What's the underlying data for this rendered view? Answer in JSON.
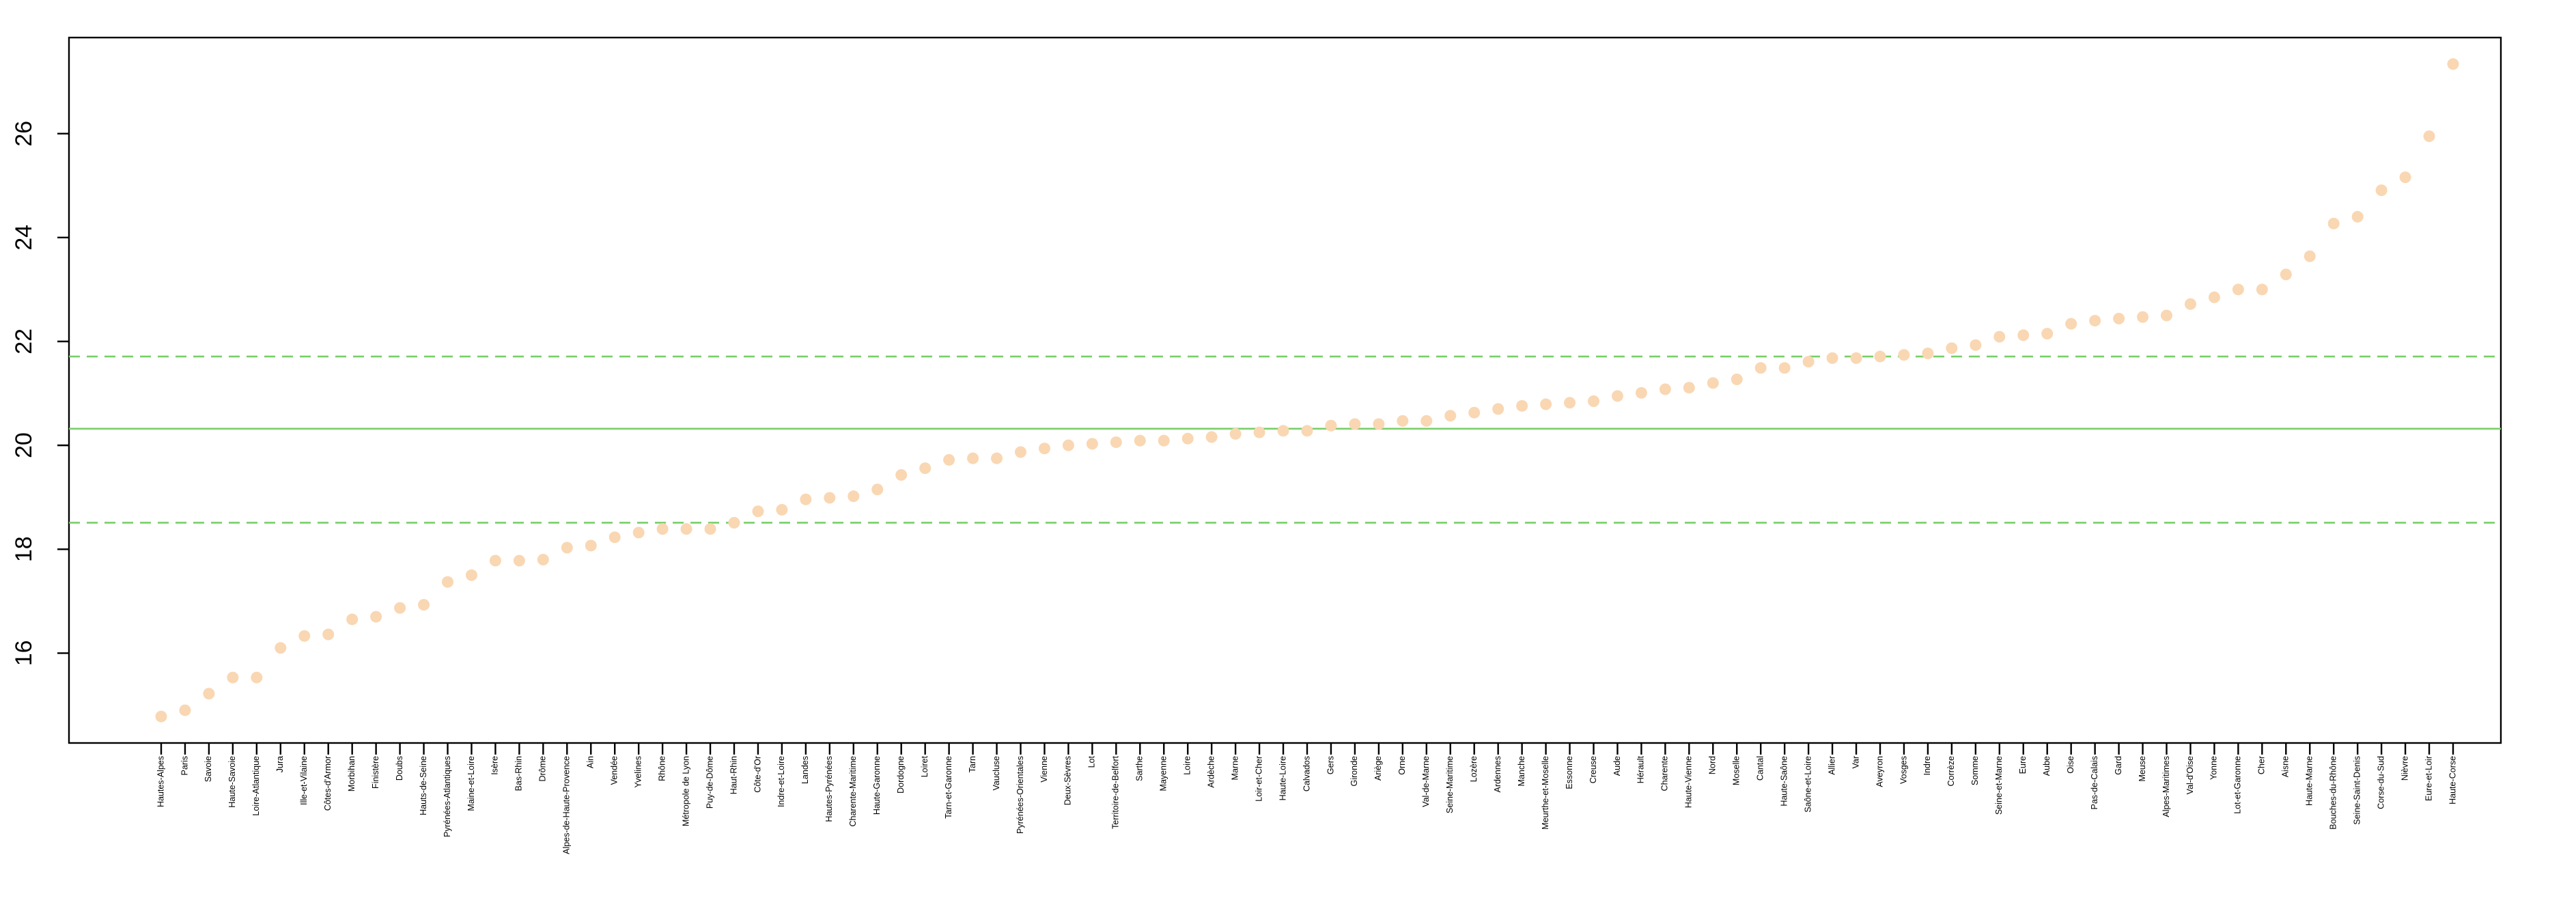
{
  "chart_data": {
    "type": "scatter",
    "categories": [
      "Hautes-Alpes",
      "Paris",
      "Savoie",
      "Haute-Savoie",
      "Loire-Atlantique",
      "Jura",
      "Ille-et-Vilaine",
      "Côtes-d'Armor",
      "Morbihan",
      "Finistère",
      "Doubs",
      "Hauts-de-Seine",
      "Pyrénées-Atlantiques",
      "Maine-et-Loire",
      "Isère",
      "Bas-Rhin",
      "Drôme",
      "Alpes-de-Haute-Provence",
      "Ain",
      "Vendée",
      "Yvelines",
      "Rhône",
      "Métropole de Lyon",
      "Puy-de-Dôme",
      "Haut-Rhin",
      "Côte-d'Or",
      "Indre-et-Loire",
      "Landes",
      "Hautes-Pyrénées",
      "Charente-Maritime",
      "Haute-Garonne",
      "Dordogne",
      "Loiret",
      "Tarn-et-Garonne",
      "Tarn",
      "Vaucluse",
      "Pyrénées-Orientales",
      "Vienne",
      "Deux-Sèvres",
      "Lot",
      "Territoire-de-Belfort",
      "Sarthe",
      "Mayenne",
      "Loire",
      "Ardèche",
      "Marne",
      "Loir-et-Cher",
      "Haute-Loire",
      "Calvados",
      "Gers",
      "Gironde",
      "Ariège",
      "Orne",
      "Val-de-Marne",
      "Seine-Maritime",
      "Lozère",
      "Ardennes",
      "Manche",
      "Meurthe-et-Moselle",
      "Essonne",
      "Creuse",
      "Aude",
      "Hérault",
      "Charente",
      "Haute-Vienne",
      "Nord",
      "Moselle",
      "Cantal",
      "Haute-Saône",
      "Saône-et-Loire",
      "Allier",
      "Var",
      "Aveyron",
      "Vosges",
      "Indre",
      "Corrèze",
      "Somme",
      "Seine-et-Marne",
      "Eure",
      "Aube",
      "Oise",
      "Pas-de-Calais",
      "Gard",
      "Meuse",
      "Alpes-Maritimes",
      "Val-d'Oise",
      "Yonne",
      "Lot-et-Garonne",
      "Cher",
      "Aisne",
      "Haute-Marne",
      "Bouches-du-Rhône",
      "Seine-Saint-Denis",
      "Corse-du-Sud",
      "Nièvre",
      "Eure-et-Loir",
      "Haute-Corse"
    ],
    "values": [
      14.78,
      14.9,
      15.22,
      15.53,
      15.53,
      16.1,
      16.33,
      16.36,
      16.65,
      16.7,
      16.87,
      16.93,
      17.37,
      17.5,
      17.78,
      17.78,
      17.8,
      18.03,
      18.07,
      18.23,
      18.32,
      18.39,
      18.39,
      18.39,
      18.51,
      18.73,
      18.76,
      18.96,
      18.99,
      19.02,
      19.15,
      19.43,
      19.56,
      19.72,
      19.75,
      19.75,
      19.87,
      19.94,
      20.0,
      20.03,
      20.06,
      20.09,
      20.09,
      20.13,
      20.16,
      20.22,
      20.25,
      20.28,
      20.28,
      20.38,
      20.41,
      20.41,
      20.47,
      20.47,
      20.57,
      20.63,
      20.7,
      20.76,
      20.79,
      20.82,
      20.85,
      20.95,
      21.01,
      21.08,
      21.11,
      21.2,
      21.27,
      21.49,
      21.49,
      21.61,
      21.68,
      21.68,
      21.71,
      21.74,
      21.77,
      21.87,
      21.93,
      22.09,
      22.12,
      22.15,
      22.34,
      22.4,
      22.44,
      22.47,
      22.5,
      22.72,
      22.85,
      23.0,
      23.0,
      23.29,
      23.64,
      24.27,
      24.4,
      24.91,
      25.16,
      25.95,
      27.34
    ],
    "color": "#f9d7b3",
    "ylim": [
      14.27,
      27.85
    ],
    "yticks": [
      16,
      18,
      20,
      22,
      24,
      26
    ],
    "hlines": [
      {
        "value": 20.32,
        "style": "solid"
      },
      {
        "value": 21.71,
        "style": "dashed"
      },
      {
        "value": 18.51,
        "style": "dashed"
      }
    ],
    "line_color": "#78cf68"
  }
}
